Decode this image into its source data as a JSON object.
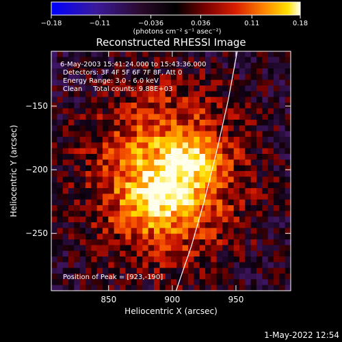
{
  "colorbar": {
    "tick_labels": [
      "−0.18",
      "−0.11",
      "−0.036",
      "0.036",
      "0.11",
      "0.18"
    ],
    "tick_values": [
      -0.18,
      -0.11,
      -0.036,
      0.036,
      0.11,
      0.18
    ],
    "range": [
      -0.18,
      0.18
    ],
    "unit_label": "(photons cm⁻² s⁻¹ asec⁻²)"
  },
  "chart_data": {
    "type": "heatmap",
    "title": "Reconstructed RHESSI Image",
    "xlabel": "Heliocentric X (arcsec)",
    "ylabel": "Heliocentric Y (arcsec)",
    "xlim": [
      805,
      993
    ],
    "ylim": [
      -295,
      -107
    ],
    "x_ticks": [
      850,
      900,
      950
    ],
    "y_ticks": [
      -150,
      -200,
      -250
    ],
    "x_tick_labels": [
      "850",
      "900",
      "950"
    ],
    "y_tick_labels": [
      "−150",
      "−200",
      "−250"
    ],
    "grid": false,
    "colormap": "red-temperature (blue-purple negative, black zero, red-orange-yellow-white positive)",
    "peak_position": [
      923,
      -190
    ],
    "limb_curve": {
      "description": "solar limb arc",
      "points": [
        [
          903,
          -295
        ],
        [
          915,
          -260
        ],
        [
          925,
          -225
        ],
        [
          935,
          -185
        ],
        [
          944,
          -145
        ],
        [
          951,
          -107
        ]
      ]
    },
    "annotations": [
      "6-May-2003 15:41:24.000 to 15:43:36.000",
      "Detectors: 3F 4F 5F 6F 7F 8F, Att 0",
      "Energy Range: 3.0 - 6.0 keV",
      "Clean     Total counts: 9.88E+03",
      "Position of Peak = [923,-190]"
    ],
    "sources": [
      {
        "x": 895,
        "y": -205,
        "sx": 42,
        "sy": 46,
        "amp": 0.155
      },
      {
        "x": 885,
        "y": -225,
        "sx": 16,
        "sy": 16,
        "amp": 0.05
      },
      {
        "x": 905,
        "y": -215,
        "sx": 14,
        "sy": 14,
        "amp": 0.04
      },
      {
        "x": 923,
        "y": -190,
        "sx": 10,
        "sy": 10,
        "amp": 0.05
      },
      {
        "x": 905,
        "y": -190,
        "sx": 12,
        "sy": 12,
        "amp": 0.03
      }
    ]
  },
  "footer": {
    "timestamp": "1-May-2022 12:54"
  }
}
